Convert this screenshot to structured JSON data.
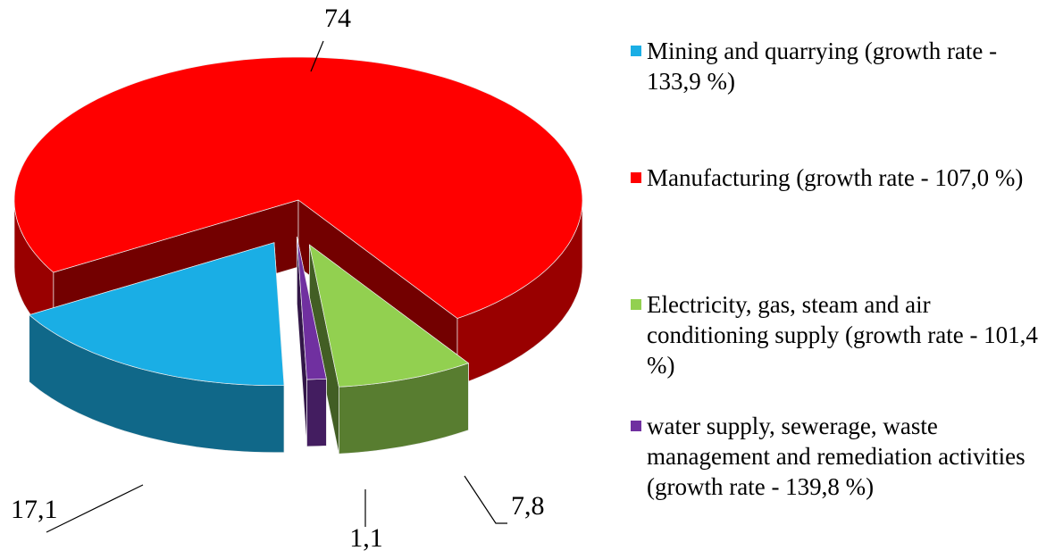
{
  "chart_data": {
    "type": "pie3d",
    "series": [
      {
        "name": "Mining and quarrying  (growth rate - 133,9 %)",
        "color": "#1aaee5"
      },
      {
        "name": "Manufacturing  (growth rate - 107,0 %)",
        "color": "#ff0000"
      },
      {
        "name": "Electricity, gas, steam and air conditioning supply (growth rate - 101,4 %)",
        "color": "#92d050"
      },
      {
        "name": "water supply, sewerage, waste management and remediation activities (growth rate - 139,8 %)",
        "color": "#7030a0"
      }
    ],
    "values": [
      17.1,
      74,
      7.8,
      1.1
    ],
    "value_labels": [
      "17,1",
      "74",
      "7,8",
      "1,1"
    ],
    "legend": "right"
  }
}
